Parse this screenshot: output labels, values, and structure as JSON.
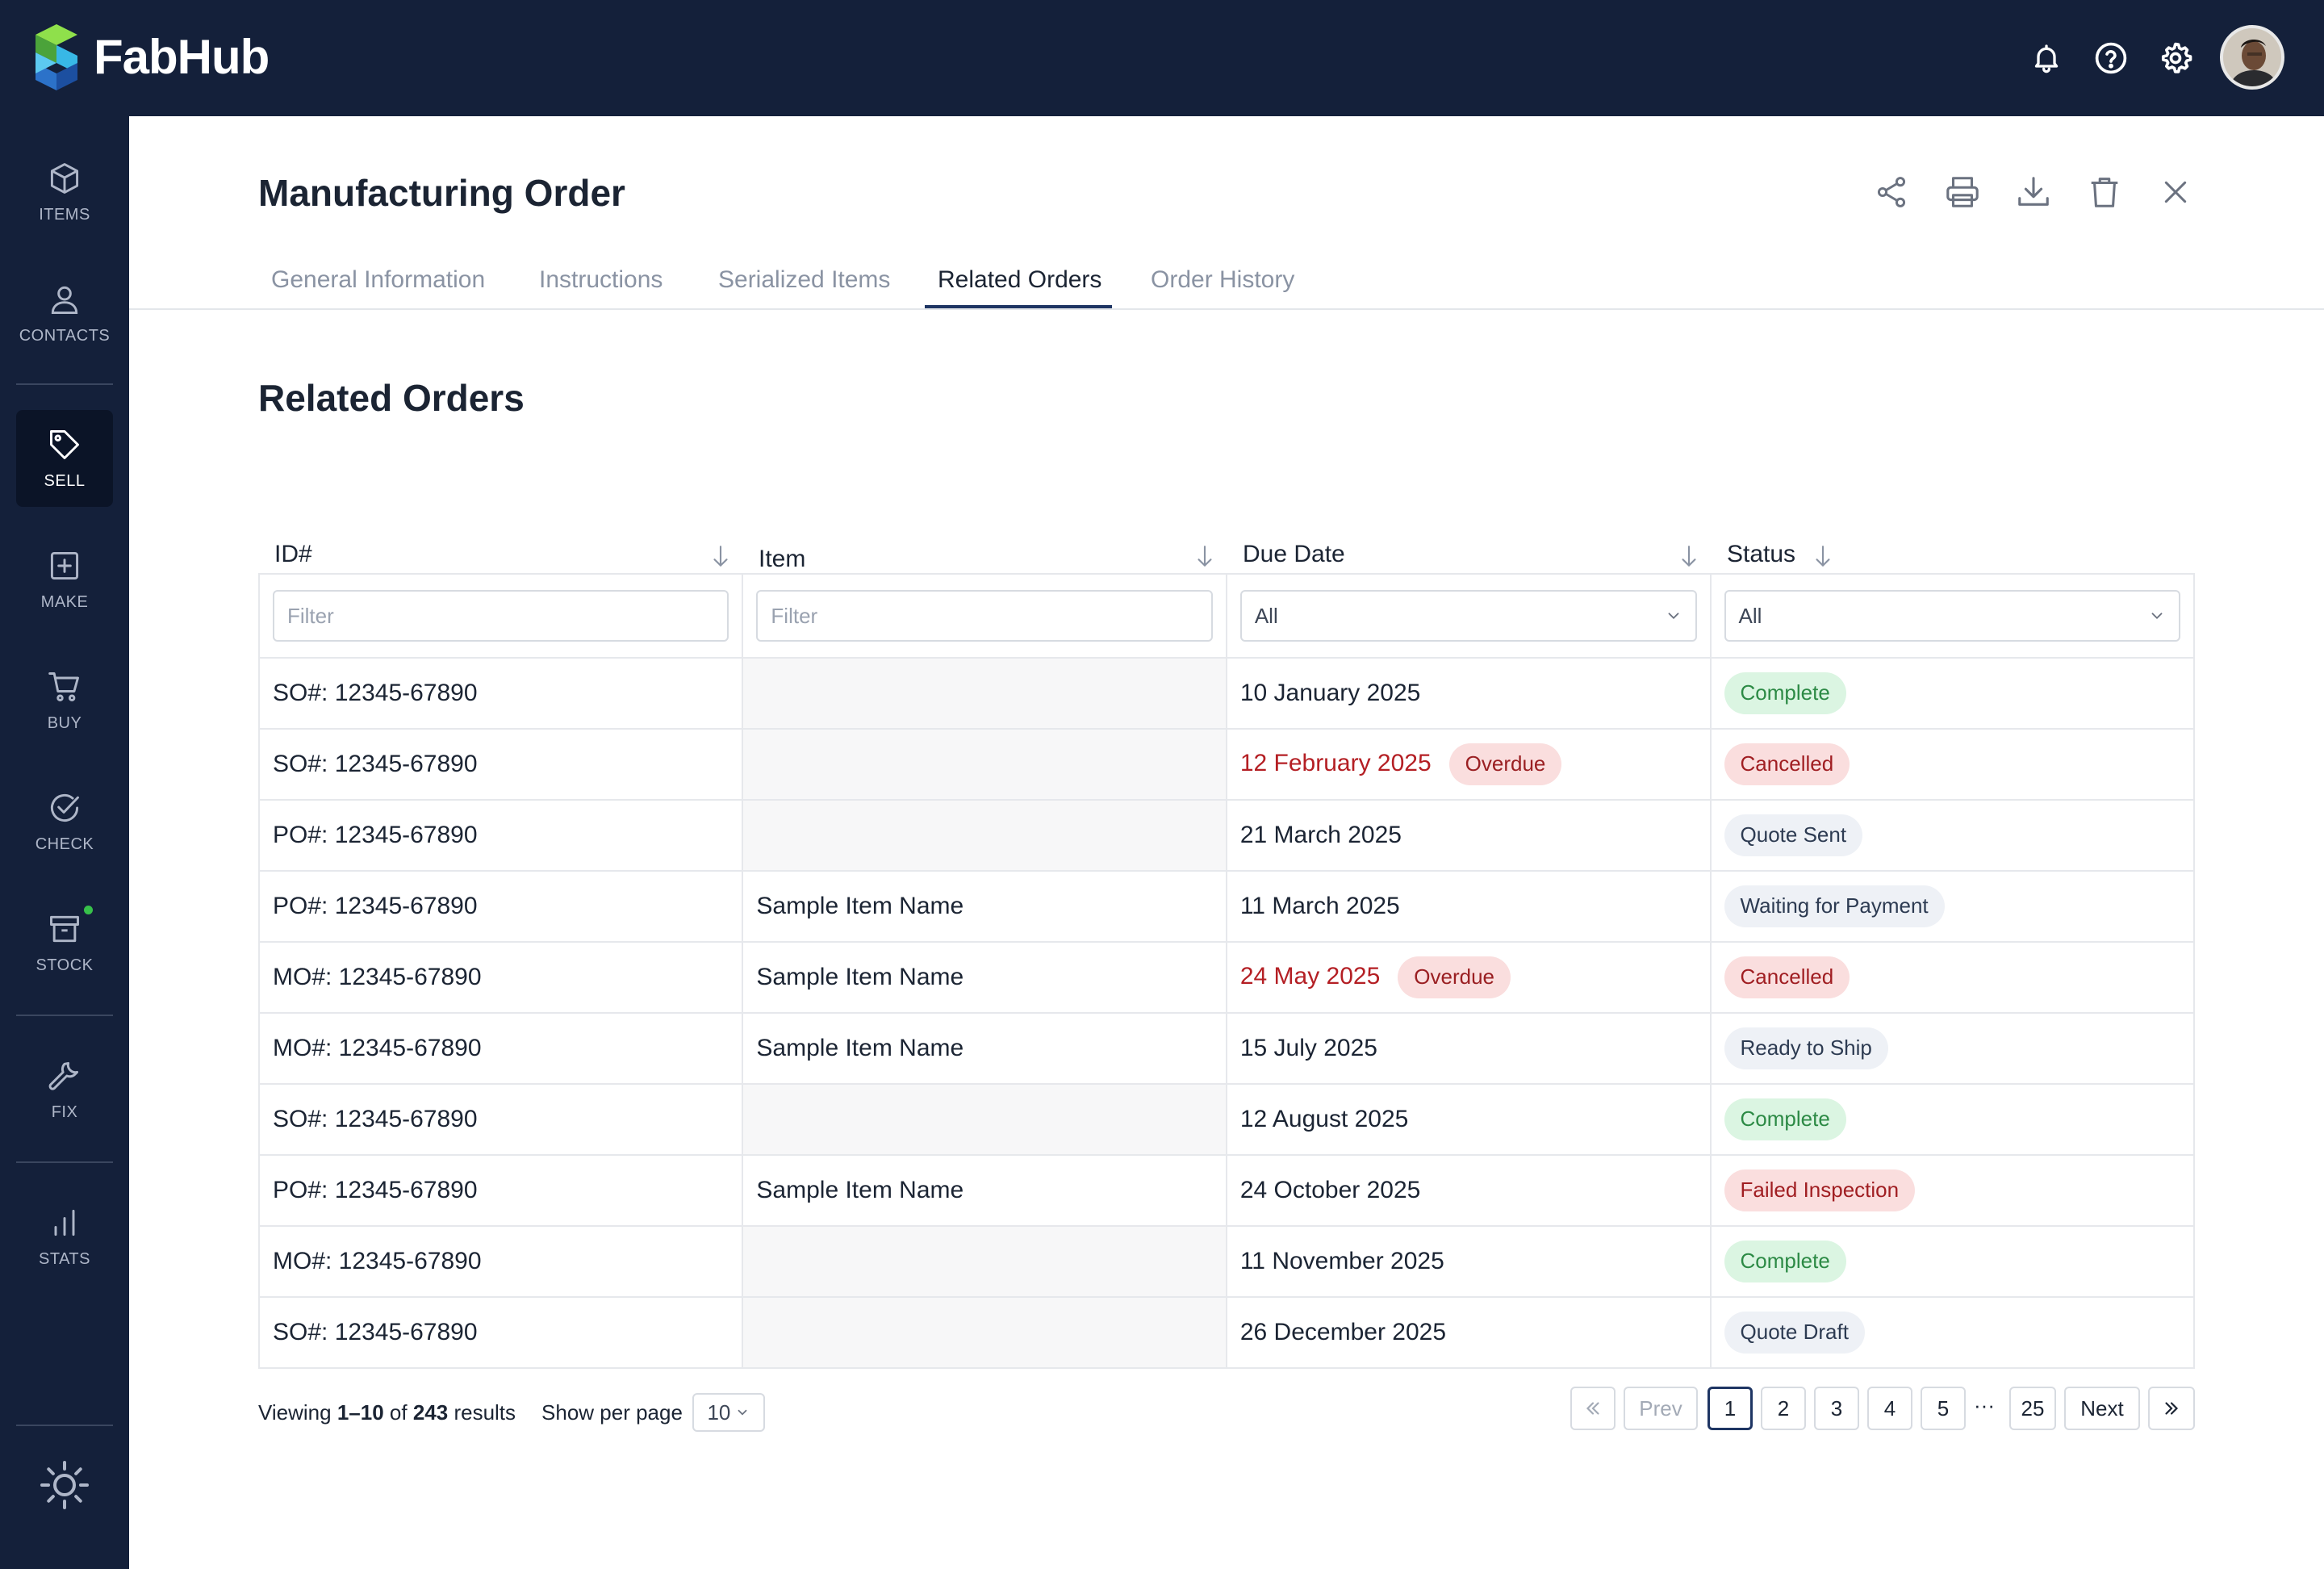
{
  "brand": {
    "name": "FabHub"
  },
  "topbar": {
    "icons": [
      "bell-icon",
      "help-circle-icon",
      "gear-icon"
    ],
    "avatar": "user-avatar"
  },
  "sidebar": {
    "items": [
      {
        "label": "ITEMS",
        "icon": "cube-icon"
      },
      {
        "label": "CONTACTS",
        "icon": "person-icon"
      },
      {
        "label": "SELL",
        "icon": "tag-icon",
        "active": true
      },
      {
        "label": "MAKE",
        "icon": "plus-square-icon"
      },
      {
        "label": "BUY",
        "icon": "cart-icon"
      },
      {
        "label": "CHECK",
        "icon": "check-circle-icon"
      },
      {
        "label": "STOCK",
        "icon": "archive-icon",
        "badge": "green-dot"
      },
      {
        "label": "FIX",
        "icon": "wrench-icon"
      },
      {
        "label": "STATS",
        "icon": "bar-chart-icon"
      }
    ],
    "theme_toggle_icon": "sun-icon"
  },
  "header": {
    "title": "Manufacturing Order",
    "actions": [
      "share-icon",
      "print-icon",
      "download-icon",
      "trash-icon",
      "close-icon"
    ]
  },
  "tabs": [
    {
      "label": "General Information"
    },
    {
      "label": "Instructions"
    },
    {
      "label": "Serialized Items"
    },
    {
      "label": "Related Orders",
      "active": true
    },
    {
      "label": "Order History"
    }
  ],
  "section": {
    "title": "Related Orders"
  },
  "table": {
    "columns": [
      "ID#",
      "Item",
      "Due Date",
      "Status"
    ],
    "filters": {
      "id_placeholder": "Filter",
      "item_placeholder": "Filter",
      "due_date_value": "All",
      "status_value": "All"
    },
    "rows": [
      {
        "id": "SO#: 12345-67890",
        "item": "",
        "due": "10 January 2025",
        "overdue": "",
        "status": "Complete",
        "status_kind": "complete"
      },
      {
        "id": "SO#: 12345-67890",
        "item": "",
        "due": "12 February 2025",
        "overdue": "Overdue",
        "status": "Cancelled",
        "status_kind": "cancelled"
      },
      {
        "id": "PO#: 12345-67890",
        "item": "",
        "due": "21 March 2025",
        "overdue": "",
        "status": "Quote Sent",
        "status_kind": "neutral"
      },
      {
        "id": "PO#: 12345-67890",
        "item": "Sample Item Name",
        "due": "11 March 2025",
        "overdue": "",
        "status": "Waiting for Payment",
        "status_kind": "neutral"
      },
      {
        "id": "MO#: 12345-67890",
        "item": "Sample Item Name",
        "due": "24 May 2025",
        "overdue": "Overdue",
        "status": "Cancelled",
        "status_kind": "cancelled"
      },
      {
        "id": "MO#: 12345-67890",
        "item": "Sample Item Name",
        "due": "15 July 2025",
        "overdue": "",
        "status": "Ready to Ship",
        "status_kind": "neutral"
      },
      {
        "id": "SO#: 12345-67890",
        "item": "",
        "due": "12 August 2025",
        "overdue": "",
        "status": "Complete",
        "status_kind": "complete"
      },
      {
        "id": "PO#: 12345-67890",
        "item": "Sample Item Name",
        "due": "24 October 2025",
        "overdue": "",
        "status": "Failed Inspection",
        "status_kind": "cancelled"
      },
      {
        "id": "MO#: 12345-67890",
        "item": "",
        "due": "11 November 2025",
        "overdue": "",
        "status": "Complete",
        "status_kind": "complete"
      },
      {
        "id": "SO#: 12345-67890",
        "item": "",
        "due": "26 December 2025",
        "overdue": "",
        "status": "Quote Draft",
        "status_kind": "neutral"
      }
    ]
  },
  "footer": {
    "viewing_prefix": "Viewing",
    "range": "1–10",
    "of": "of",
    "total": "243",
    "results": "results",
    "show_per_page": "Show per page",
    "per_page_value": "10"
  },
  "pagination": {
    "prev": "Prev",
    "next": "Next",
    "pages": [
      "1",
      "2",
      "3",
      "4",
      "5"
    ],
    "ellipsis": "···",
    "last": "25",
    "current": "1"
  },
  "colors": {
    "navy": "#14203a",
    "overdue_red": "#b41f24",
    "complete_green": "#2c8a45",
    "active_tab": "#1e3563"
  }
}
